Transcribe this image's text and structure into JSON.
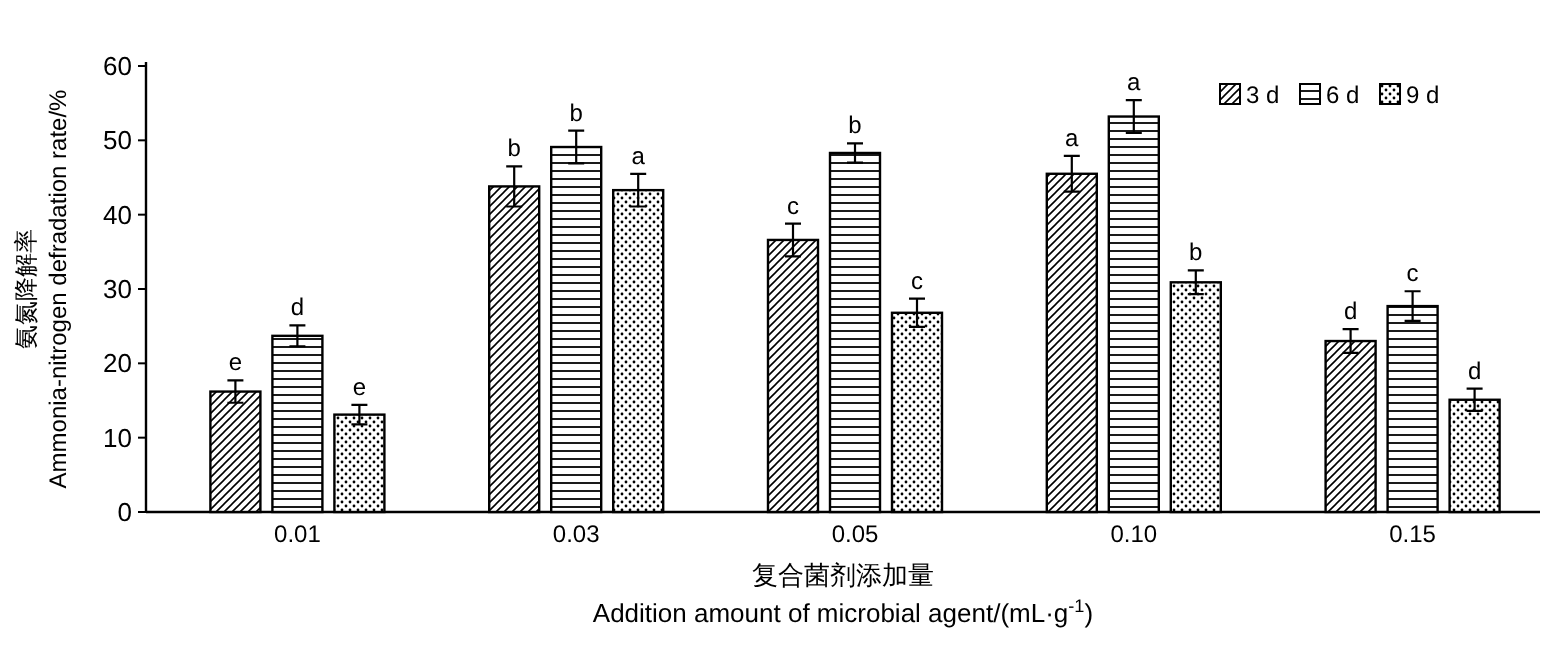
{
  "chart_data": {
    "type": "bar",
    "xlabel": "复合菌剂添加量\nAddition amount of microbial agent/(mL·g$^{-1}$)",
    "ylabel": "氨氮降解率\nAmmonia-nitrogen defradation rate/%",
    "categories": [
      "0.01",
      "0.03",
      "0.05",
      "0.10",
      "0.15"
    ],
    "series": [
      {
        "name": "3 d",
        "color": "#000000",
        "values": [
          16.2,
          43.8,
          36.6,
          45.5,
          23.0
        ],
        "errors": [
          1.5,
          2.7,
          2.2,
          2.4,
          1.6
        ],
        "value_labels": [
          "e",
          "b",
          "c",
          "a",
          "d"
        ]
      },
      {
        "name": "6 d",
        "color": "#000000",
        "values": [
          23.7,
          49.1,
          48.3,
          53.2,
          27.7
        ],
        "errors": [
          1.4,
          2.2,
          1.3,
          2.2,
          2.0
        ],
        "value_labels": [
          "d",
          "b",
          "b",
          "a",
          "c"
        ]
      },
      {
        "name": "9 d",
        "color": "#000000",
        "values": [
          13.1,
          43.3,
          26.8,
          30.9,
          15.1
        ],
        "errors": [
          1.3,
          2.2,
          1.9,
          1.6,
          1.5
        ],
        "value_labels": [
          "e",
          "a",
          "c",
          "b",
          "d"
        ]
      }
    ],
    "ylim": [
      0,
      60
    ],
    "yticks": [
      0,
      10,
      20,
      30,
      40,
      50,
      60
    ],
    "legend": "top right"
  }
}
